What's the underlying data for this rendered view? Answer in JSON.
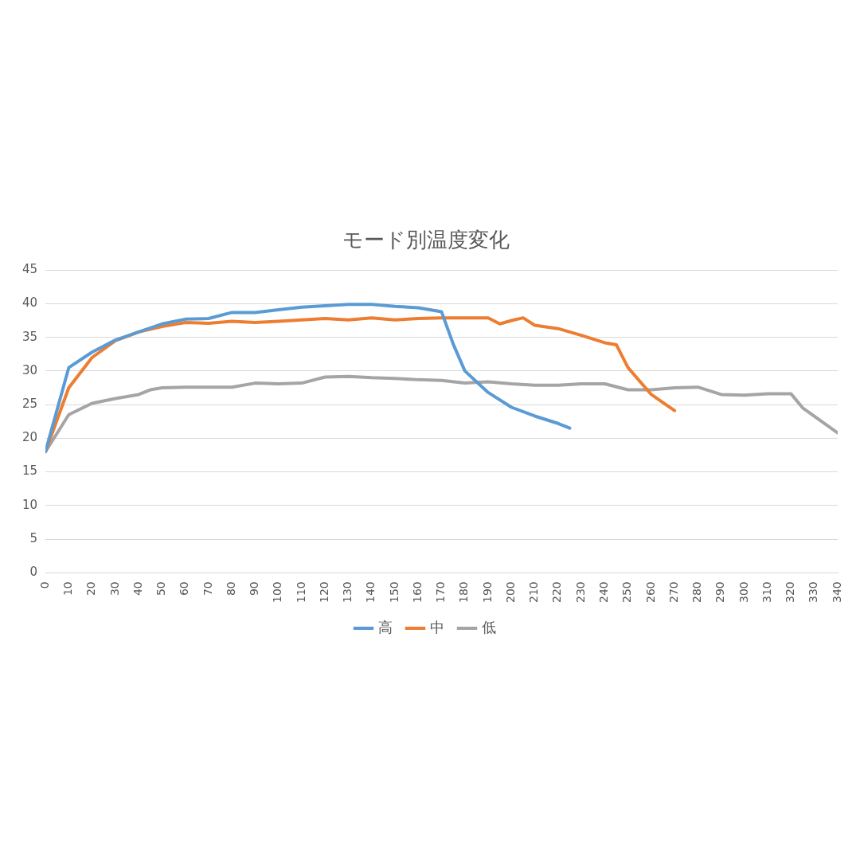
{
  "chart_data": {
    "type": "line",
    "title": "モード別温度変化",
    "xlim": [
      0,
      340
    ],
    "xticks": [
      0,
      10,
      20,
      30,
      40,
      50,
      60,
      70,
      80,
      90,
      100,
      110,
      120,
      130,
      140,
      150,
      160,
      170,
      180,
      190,
      200,
      210,
      220,
      230,
      240,
      250,
      260,
      270,
      280,
      290,
      300,
      310,
      320,
      330,
      340
    ],
    "ylim": [
      0,
      45
    ],
    "yticks": [
      0,
      5,
      10,
      15,
      20,
      25,
      30,
      35,
      40,
      45
    ],
    "grid": "y",
    "legend": "bottom",
    "marker": "none",
    "line_style": "solid",
    "series": [
      {
        "name": "高",
        "color": "#5b9bd5",
        "x": [
          0,
          10,
          20,
          30,
          40,
          50,
          60,
          70,
          80,
          90,
          100,
          110,
          120,
          130,
          140,
          150,
          160,
          170,
          175,
          180,
          190,
          200,
          210,
          220,
          225
        ],
        "values": [
          18,
          30.5,
          32.8,
          34.6,
          35.8,
          37,
          37.7,
          37.8,
          38.7,
          38.7,
          39.1,
          39.5,
          39.7,
          39.9,
          39.9,
          39.6,
          39.4,
          38.8,
          34,
          30,
          26.8,
          24.6,
          23.3,
          22.2,
          21.5
        ]
      },
      {
        "name": "中",
        "color": "#ed7d31",
        "x": [
          0,
          10,
          20,
          30,
          40,
          50,
          60,
          70,
          80,
          90,
          100,
          110,
          120,
          130,
          140,
          150,
          160,
          170,
          180,
          190,
          195,
          200,
          205,
          210,
          220,
          230,
          240,
          245,
          250,
          260,
          270
        ],
        "values": [
          18,
          27.5,
          32,
          34.5,
          35.8,
          36.6,
          37.2,
          37.1,
          37.4,
          37.2,
          37.4,
          37.6,
          37.8,
          37.6,
          37.9,
          37.6,
          37.8,
          37.9,
          37.9,
          37.9,
          37,
          37.5,
          37.9,
          36.8,
          36.3,
          35.3,
          34.2,
          33.9,
          30.5,
          26.5,
          24.1
        ]
      },
      {
        "name": "低",
        "color": "#a5a5a5",
        "x": [
          0,
          10,
          20,
          30,
          40,
          45,
          50,
          60,
          70,
          80,
          90,
          100,
          110,
          120,
          130,
          140,
          150,
          160,
          170,
          180,
          190,
          200,
          210,
          220,
          230,
          240,
          250,
          260,
          270,
          280,
          290,
          300,
          310,
          320,
          325,
          340
        ],
        "values": [
          18,
          23.5,
          25.2,
          25.9,
          26.5,
          27.2,
          27.5,
          27.6,
          27.6,
          27.6,
          28.2,
          28.1,
          28.2,
          29.1,
          29.2,
          29,
          28.9,
          28.7,
          28.6,
          28.2,
          28.4,
          28.1,
          27.9,
          27.9,
          28.1,
          28.1,
          27.2,
          27.2,
          27.5,
          27.6,
          26.5,
          26.4,
          26.6,
          26.6,
          24.5,
          20.8
        ]
      }
    ]
  }
}
